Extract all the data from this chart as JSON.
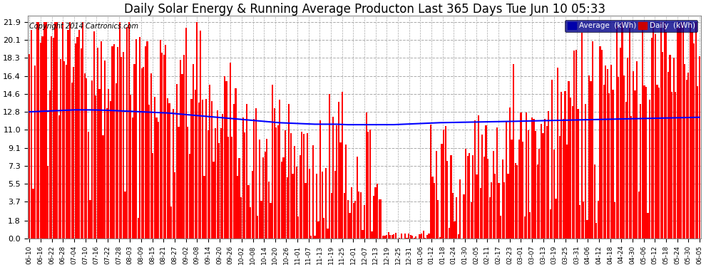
{
  "title": "Daily Solar Energy & Running Average Producton Last 365 Days Tue Jun 10 05:33",
  "copyright": "Copyright 2014 Cartronics.com",
  "yticks": [
    0.0,
    1.8,
    3.7,
    5.5,
    7.3,
    9.1,
    11.0,
    12.8,
    14.6,
    16.4,
    18.3,
    20.1,
    21.9
  ],
  "ylim": [
    0.0,
    22.5
  ],
  "bar_color": "#FF0000",
  "avg_line_color": "#0000FF",
  "background_color": "#FFFFFF",
  "plot_bg_color": "#FFFFFF",
  "grid_color": "#AAAAAA",
  "legend_avg_label": "Average  (kWh)",
  "legend_daily_label": "Daily  (kWh)",
  "title_fontsize": 12,
  "copyright_fontsize": 7,
  "xtick_labels": [
    "06-10",
    "06-16",
    "06-22",
    "06-28",
    "07-04",
    "07-10",
    "07-16",
    "07-22",
    "07-28",
    "08-03",
    "08-09",
    "08-15",
    "08-21",
    "08-27",
    "09-02",
    "09-08",
    "09-14",
    "09-20",
    "09-26",
    "10-02",
    "10-08",
    "10-14",
    "10-20",
    "10-26",
    "11-01",
    "11-07",
    "11-13",
    "11-19",
    "11-25",
    "12-01",
    "12-07",
    "12-13",
    "12-19",
    "12-25",
    "12-31",
    "01-06",
    "01-12",
    "01-18",
    "01-24",
    "01-30",
    "02-05",
    "02-11",
    "02-17",
    "02-23",
    "03-01",
    "03-07",
    "03-13",
    "03-19",
    "03-25",
    "03-31",
    "04-06",
    "04-12",
    "04-18",
    "04-24",
    "04-30",
    "05-06",
    "05-12",
    "05-18",
    "05-24",
    "05-30",
    "06-05"
  ],
  "avg_values_key": [
    12.8,
    12.85,
    12.9,
    12.95,
    13.0,
    13.0,
    12.98,
    12.95,
    12.9,
    12.85,
    12.8,
    12.75,
    12.7,
    12.6,
    12.5,
    12.4,
    12.3,
    12.2,
    12.1,
    12.0,
    11.9,
    11.8,
    11.7,
    11.65,
    11.6,
    11.55,
    11.55,
    11.55,
    11.5,
    11.5,
    11.5,
    11.5,
    11.5,
    11.55,
    11.6,
    11.65,
    11.7,
    11.72,
    11.74,
    11.76,
    11.78,
    11.8,
    11.82,
    11.85,
    11.88,
    11.9,
    11.92,
    11.95,
    11.98,
    12.0,
    12.02,
    12.05,
    12.08,
    12.1,
    12.12,
    12.15,
    12.18,
    12.2,
    12.22,
    12.25
  ]
}
